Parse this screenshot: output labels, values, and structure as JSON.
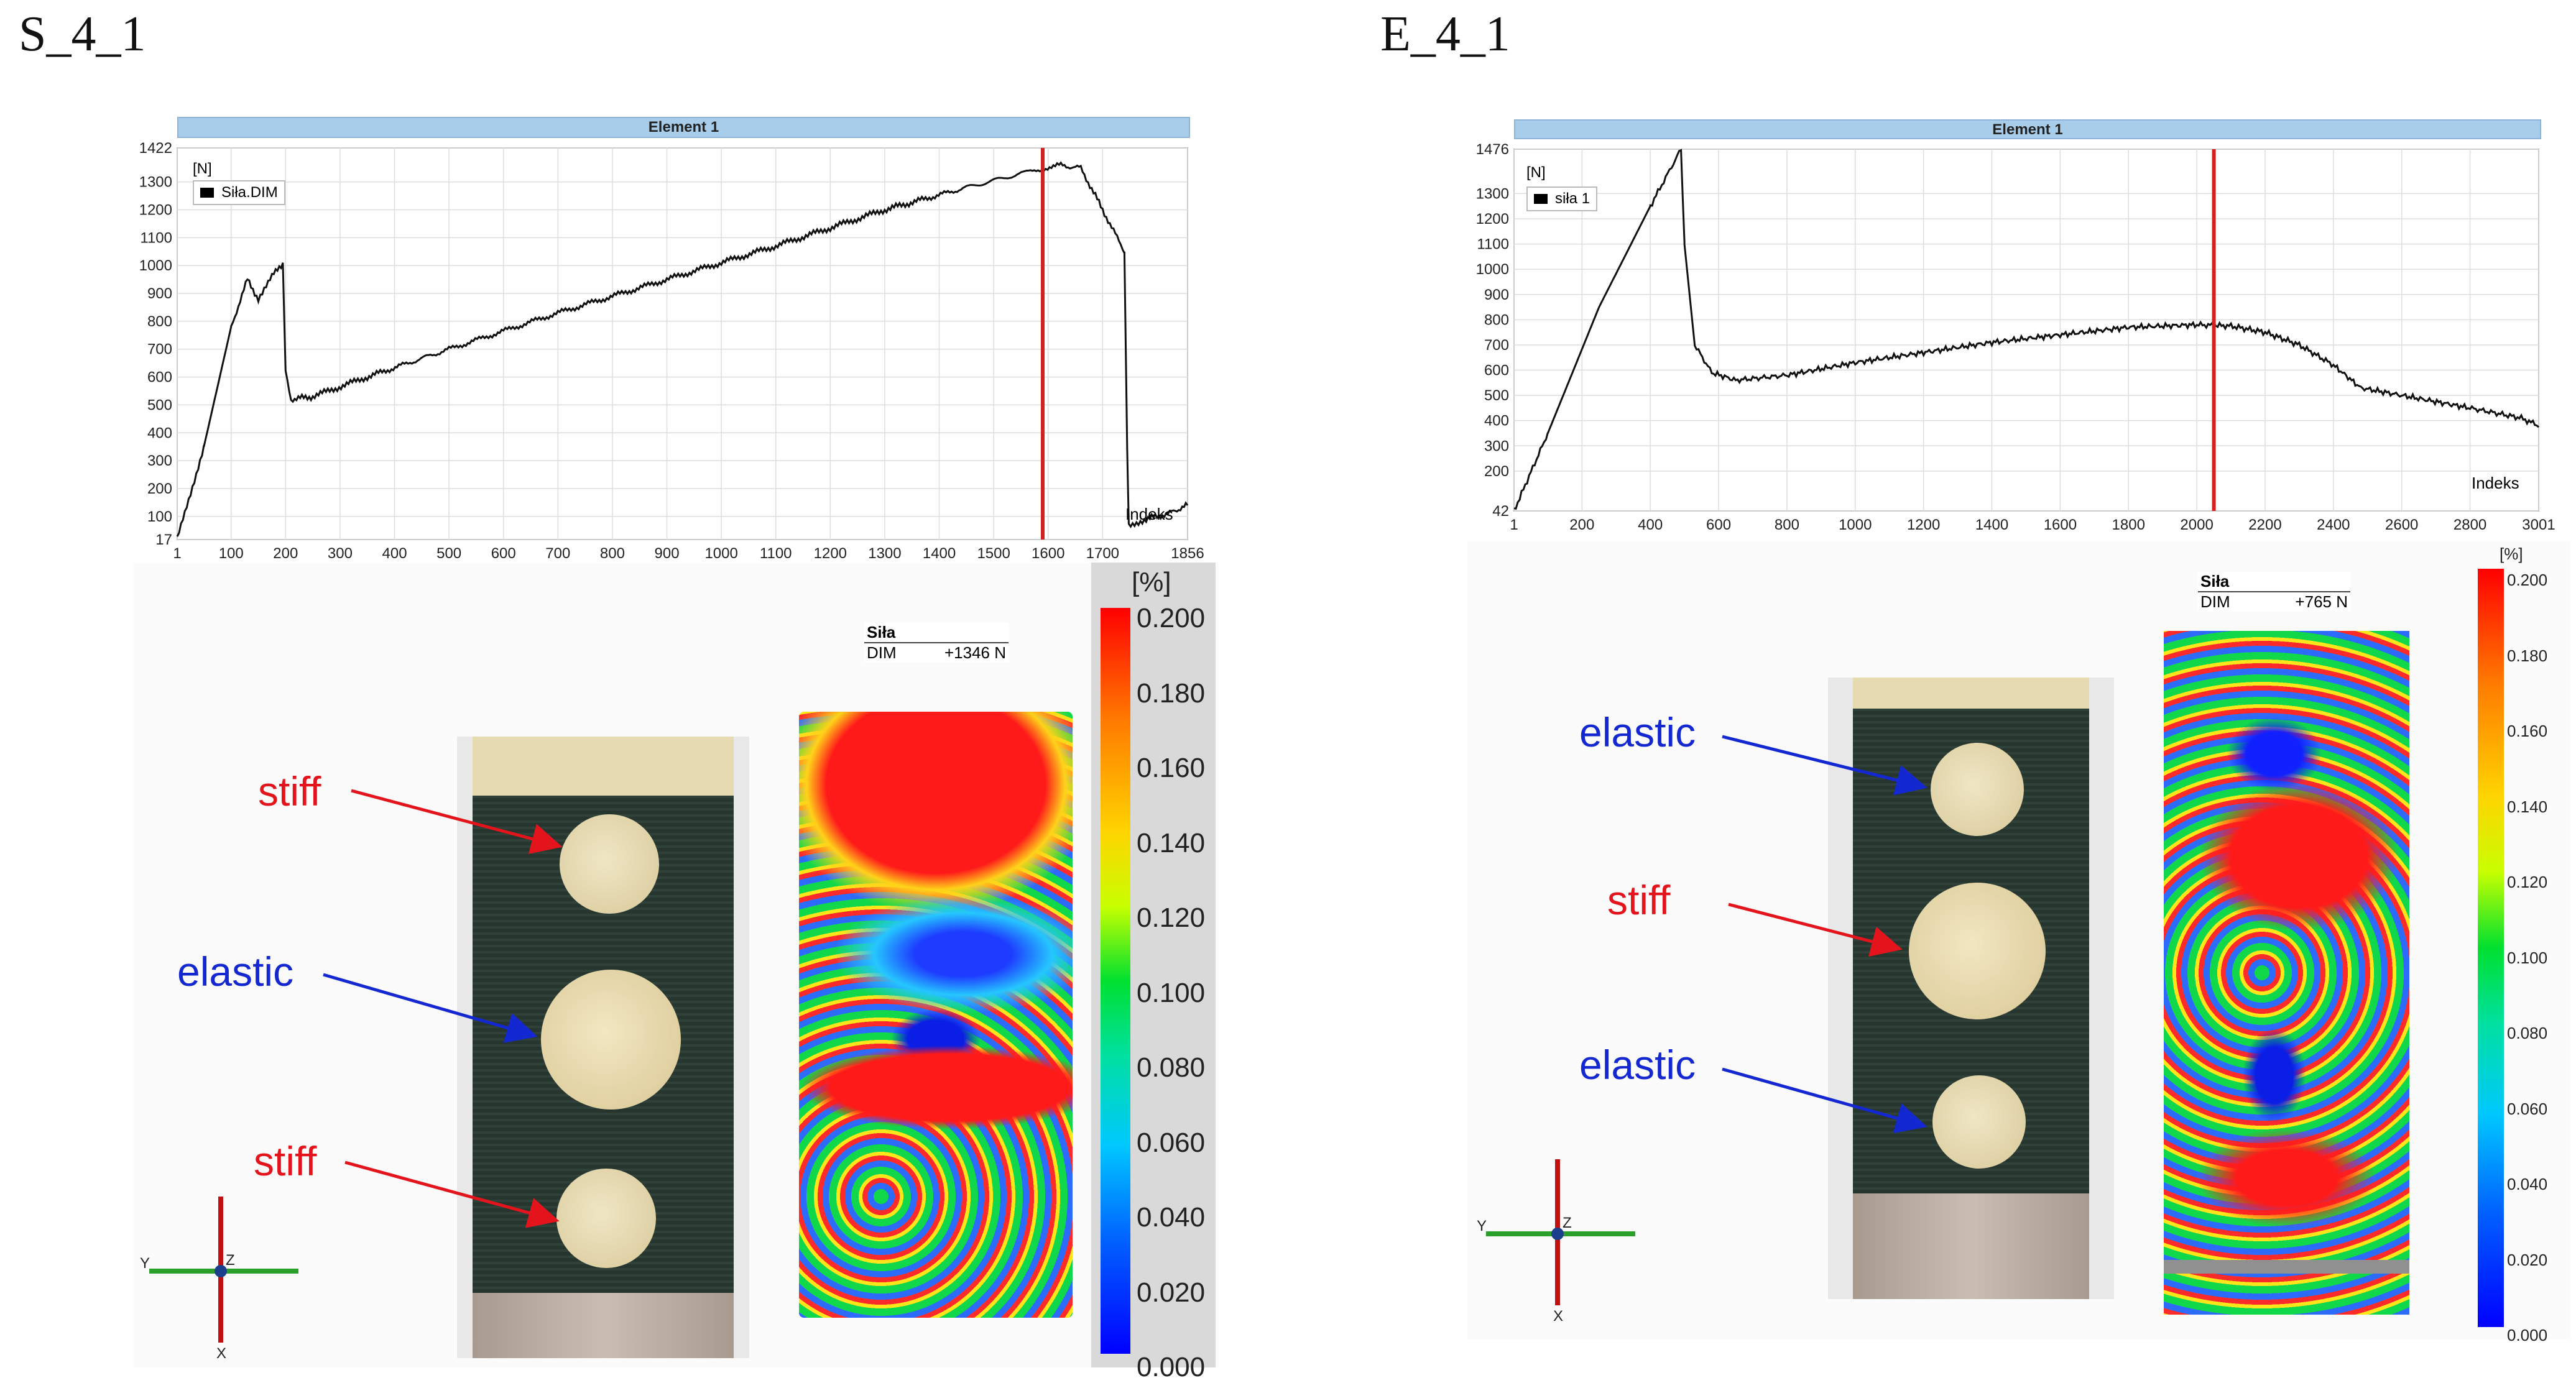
{
  "left": {
    "title": "S_4_1",
    "panel_header": "Element 1",
    "unit_label": "[N]",
    "legend": "Siła.DIM",
    "x_axis_label": "Indeks",
    "dim_box": {
      "header": "Siła",
      "key": "DIM",
      "value": "+1346 N"
    },
    "colorbar": {
      "unit": "[%]",
      "ticks": [
        "0.200",
        "0.180",
        "0.160",
        "0.140",
        "0.120",
        "0.100",
        "0.080",
        "0.060",
        "0.040",
        "0.020",
        "0.000"
      ]
    },
    "annotations": [
      {
        "text": "stiff",
        "color": "#e3141b"
      },
      {
        "text": "elastic",
        "color": "#1428d2"
      },
      {
        "text": "stiff",
        "color": "#e3141b"
      }
    ],
    "axes": {
      "y": "Y",
      "z": "Z",
      "x": "X"
    },
    "chart_data": {
      "type": "line",
      "title": "Element 1",
      "xlabel": "Indeks",
      "ylabel": "[N]",
      "xlim": [
        1,
        1856
      ],
      "ylim": [
        17,
        1422
      ],
      "x_ticks": [
        "1",
        "100",
        "200",
        "300",
        "400",
        "500",
        "600",
        "700",
        "800",
        "900",
        "1000",
        "1100",
        "1200",
        "1300",
        "1400",
        "1500",
        "1600",
        "1700",
        "1856"
      ],
      "y_ticks": [
        "1422",
        "1300",
        "1200",
        "1100",
        "1000",
        "900",
        "800",
        "700",
        "600",
        "500",
        "400",
        "300",
        "200",
        "100",
        "17"
      ],
      "series": [
        {
          "name": "Siła.DIM",
          "points": [
            [
              1,
              17
            ],
            [
              50,
              350
            ],
            [
              100,
              780
            ],
            [
              130,
              950
            ],
            [
              150,
              880
            ],
            [
              175,
              960
            ],
            [
              195,
              1010
            ],
            [
              200,
              620
            ],
            [
              210,
              520
            ],
            [
              250,
              530
            ],
            [
              350,
              600
            ],
            [
              500,
              700
            ],
            [
              700,
              830
            ],
            [
              900,
              950
            ],
            [
              1100,
              1070
            ],
            [
              1300,
              1200
            ],
            [
              1450,
              1280
            ],
            [
              1550,
              1330
            ],
            [
              1620,
              1360
            ],
            [
              1660,
              1350
            ],
            [
              1700,
              1200
            ],
            [
              1740,
              1050
            ],
            [
              1745,
              350
            ],
            [
              1748,
              70
            ],
            [
              1780,
              90
            ],
            [
              1820,
              110
            ],
            [
              1856,
              140
            ]
          ]
        }
      ],
      "marker_x": 1590,
      "grid": true
    }
  },
  "right": {
    "title": "E_4_1",
    "panel_header": "Element 1",
    "unit_label": "[N]",
    "legend": "siła 1",
    "x_axis_label": "Indeks",
    "dim_box": {
      "header": "Siła",
      "key": "DIM",
      "value": "+765 N"
    },
    "colorbar": {
      "unit": "[%]",
      "ticks": [
        "0.200",
        "0.180",
        "0.160",
        "0.140",
        "0.120",
        "0.100",
        "0.080",
        "0.060",
        "0.040",
        "0.020",
        "0.000"
      ]
    },
    "annotations": [
      {
        "text": "elastic",
        "color": "#1428d2"
      },
      {
        "text": "stiff",
        "color": "#e3141b"
      },
      {
        "text": "elastic",
        "color": "#1428d2"
      }
    ],
    "axes": {
      "y": "Y",
      "z": "Z",
      "x": "X"
    },
    "chart_data": {
      "type": "line",
      "title": "Element 1",
      "xlabel": "Indeks",
      "ylabel": "[N]",
      "xlim": [
        1,
        3001
      ],
      "ylim": [
        42,
        1476
      ],
      "x_ticks": [
        "1",
        "200",
        "400",
        "600",
        "800",
        "1000",
        "1200",
        "1400",
        "1600",
        "1800",
        "2000",
        "2200",
        "2400",
        "2600",
        "2800",
        "3001"
      ],
      "y_ticks": [
        "1476",
        "1300",
        "1200",
        "1100",
        "1000",
        "900",
        "800",
        "700",
        "600",
        "500",
        "400",
        "300",
        "200",
        "42"
      ],
      "series": [
        {
          "name": "siła 1",
          "points": [
            [
              1,
              42
            ],
            [
              100,
              350
            ],
            [
              250,
              850
            ],
            [
              400,
              1250
            ],
            [
              490,
              1476
            ],
            [
              500,
              1100
            ],
            [
              530,
              700
            ],
            [
              580,
              590
            ],
            [
              650,
              560
            ],
            [
              800,
              580
            ],
            [
              1000,
              630
            ],
            [
              1200,
              670
            ],
            [
              1400,
              710
            ],
            [
              1600,
              740
            ],
            [
              1800,
              770
            ],
            [
              2000,
              780
            ],
            [
              2100,
              775
            ],
            [
              2200,
              750
            ],
            [
              2300,
              700
            ],
            [
              2400,
              620
            ],
            [
              2480,
              530
            ],
            [
              2600,
              500
            ],
            [
              2800,
              450
            ],
            [
              2950,
              410
            ],
            [
              3001,
              380
            ]
          ]
        }
      ],
      "marker_x": 2050,
      "grid": true
    }
  }
}
